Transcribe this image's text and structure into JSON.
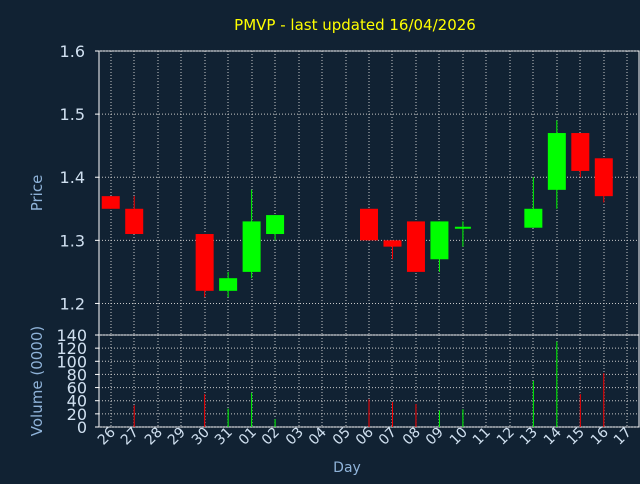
{
  "title": "PMVP - last updated 16/04/2026",
  "colors": {
    "background": "#112233",
    "plot_border": "#ffffff",
    "grid": "#c8c8c8",
    "title": "#ffff00",
    "axis_text": "#8fb3d9",
    "tick_text": "#d0e0f0",
    "up": "#00ff00",
    "down": "#ff0000"
  },
  "chart_data": [
    {
      "type": "candlestick",
      "ylabel": "Price",
      "ylim": [
        1.15,
        1.6
      ],
      "yticks": [
        "1.2",
        "1.3",
        "1.4",
        "1.5",
        "1.6"
      ],
      "grid": true,
      "categories": [
        "26",
        "27",
        "28",
        "29",
        "30",
        "31",
        "01",
        "02",
        "03",
        "04",
        "05",
        "06",
        "07",
        "08",
        "09",
        "10",
        "11",
        "12",
        "13",
        "14",
        "15",
        "16",
        "17"
      ],
      "candles": [
        {
          "x": "26",
          "open": 1.37,
          "close": 1.35,
          "high": 1.37,
          "low": 1.35
        },
        {
          "x": "27",
          "open": 1.35,
          "close": 1.31,
          "high": 1.37,
          "low": 1.31
        },
        {
          "x": "30",
          "open": 1.31,
          "close": 1.22,
          "high": 1.31,
          "low": 1.21
        },
        {
          "x": "31",
          "open": 1.22,
          "close": 1.24,
          "high": 1.25,
          "low": 1.21
        },
        {
          "x": "01",
          "open": 1.25,
          "close": 1.33,
          "high": 1.38,
          "low": 1.24
        },
        {
          "x": "02",
          "open": 1.31,
          "close": 1.34,
          "high": 1.34,
          "low": 1.3
        },
        {
          "x": "06",
          "open": 1.35,
          "close": 1.3,
          "high": 1.35,
          "low": 1.3
        },
        {
          "x": "07",
          "open": 1.3,
          "close": 1.29,
          "high": 1.3,
          "low": 1.27
        },
        {
          "x": "08",
          "open": 1.33,
          "close": 1.25,
          "high": 1.33,
          "low": 1.25
        },
        {
          "x": "09",
          "open": 1.27,
          "close": 1.33,
          "high": 1.33,
          "low": 1.25
        },
        {
          "x": "10",
          "open": 1.32,
          "close": 1.32,
          "high": 1.33,
          "low": 1.29
        },
        {
          "x": "13",
          "open": 1.32,
          "close": 1.35,
          "high": 1.4,
          "low": 1.32
        },
        {
          "x": "14",
          "open": 1.38,
          "close": 1.47,
          "high": 1.49,
          "low": 1.35
        },
        {
          "x": "15",
          "open": 1.47,
          "close": 1.41,
          "high": 1.47,
          "low": 1.4
        },
        {
          "x": "16",
          "open": 1.43,
          "close": 1.37,
          "high": 1.43,
          "low": 1.36
        }
      ]
    },
    {
      "type": "bar",
      "xlabel": "Day",
      "ylabel": "Volume (0000)",
      "ylim": [
        0,
        140
      ],
      "yticks": [
        "0",
        "20",
        "40",
        "60",
        "80",
        "100",
        "120",
        "140"
      ],
      "grid": true,
      "categories": [
        "26",
        "27",
        "28",
        "29",
        "30",
        "31",
        "01",
        "02",
        "03",
        "04",
        "05",
        "06",
        "07",
        "08",
        "09",
        "10",
        "11",
        "12",
        "13",
        "14",
        "15",
        "16",
        "17"
      ],
      "bars": [
        {
          "x": "26",
          "value": 0,
          "direction": "down"
        },
        {
          "x": "27",
          "value": 33,
          "direction": "down"
        },
        {
          "x": "30",
          "value": 50,
          "direction": "down"
        },
        {
          "x": "31",
          "value": 28,
          "direction": "up"
        },
        {
          "x": "01",
          "value": 52,
          "direction": "up"
        },
        {
          "x": "02",
          "value": 12,
          "direction": "up"
        },
        {
          "x": "06",
          "value": 42,
          "direction": "down"
        },
        {
          "x": "07",
          "value": 38,
          "direction": "down"
        },
        {
          "x": "08",
          "value": 35,
          "direction": "down"
        },
        {
          "x": "09",
          "value": 25,
          "direction": "up"
        },
        {
          "x": "10",
          "value": 27,
          "direction": "up"
        },
        {
          "x": "13",
          "value": 70,
          "direction": "up"
        },
        {
          "x": "14",
          "value": 130,
          "direction": "up"
        },
        {
          "x": "15",
          "value": 50,
          "direction": "down"
        },
        {
          "x": "16",
          "value": 82,
          "direction": "down"
        }
      ]
    }
  ]
}
